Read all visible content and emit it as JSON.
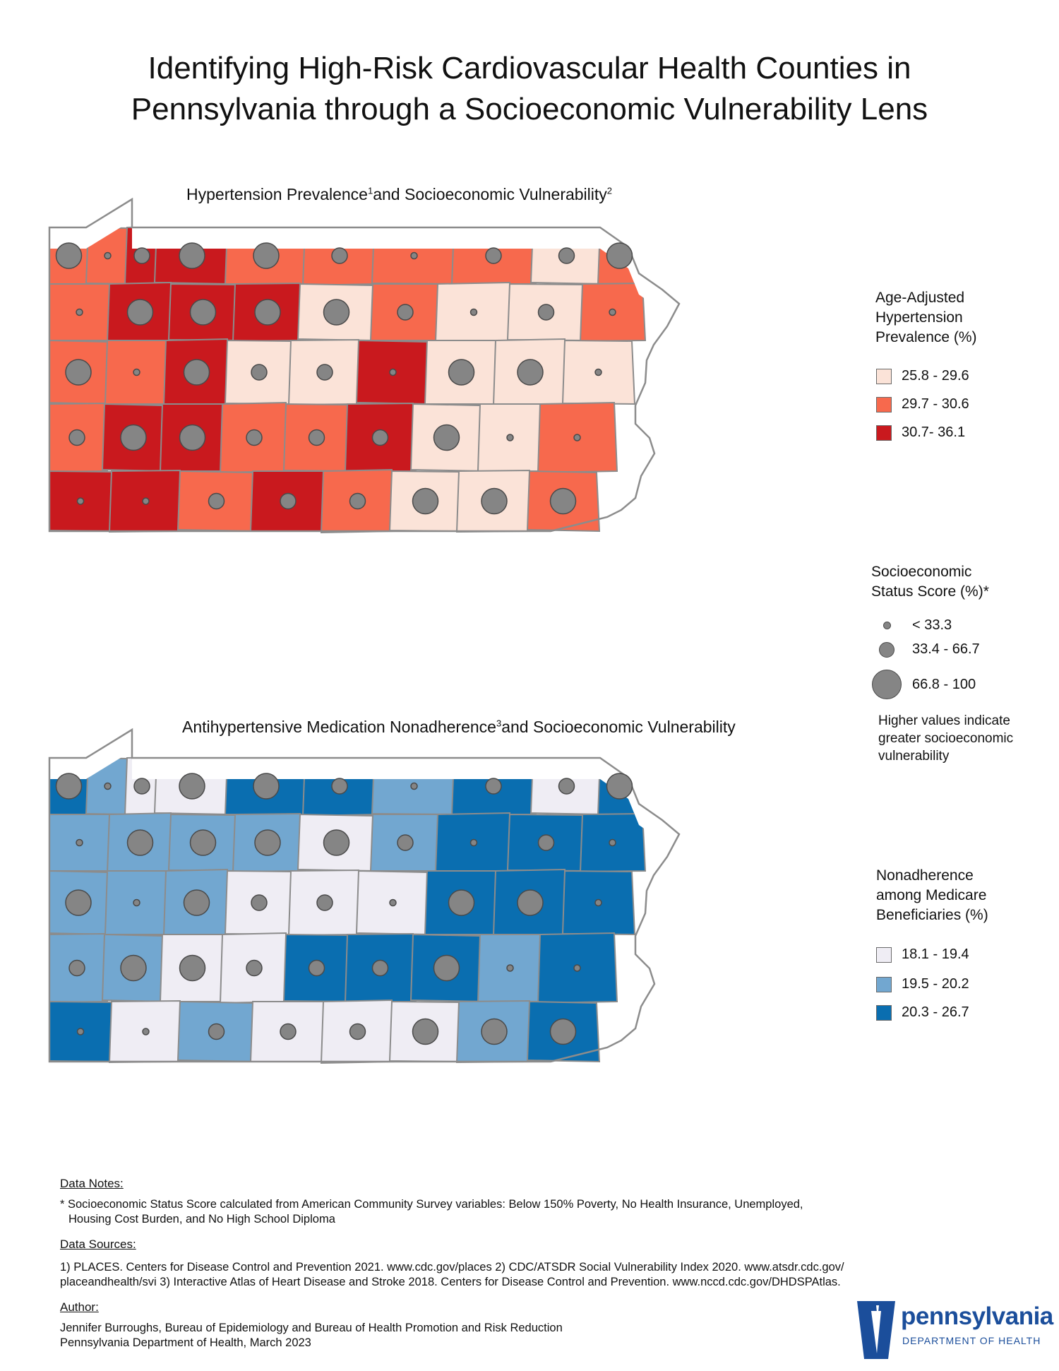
{
  "title_line1": "Identifying High-Risk Cardiovascular Health Counties in",
  "title_line2": "Pennsylvania through a Socioeconomic Vulnerability Lens",
  "map1": {
    "title": "Hypertension Prevalence",
    "sup1": "1",
    "title_mid": "and Socioeconomic Vulnerability",
    "sup2": "2",
    "colors": [
      "#fbe3d8",
      "#f7694d",
      "#c9191e"
    ]
  },
  "map2": {
    "title": "Antihypertensive Medication Nonadherence",
    "sup1": "3",
    "title_mid": "and Socioeconomic Vulnerability",
    "colors": [
      "#efedf4",
      "#72a7d0",
      "#0a6eb0"
    ]
  },
  "legend_hypertension": {
    "heading": [
      "Age-Adjusted",
      "Hypertension",
      "Prevalence (%)"
    ],
    "items": [
      "25.8 - 29.6",
      "29.7 - 30.6",
      "30.7- 36.1"
    ]
  },
  "legend_ses": {
    "heading": [
      "Socioeconomic",
      "Status Score (%)*"
    ],
    "items": [
      "< 33.3",
      "33.4 - 66.7",
      "66.8 - 100"
    ],
    "note": [
      "Higher values indicate",
      "greater socioeconomic",
      "vulnerability"
    ]
  },
  "legend_nonadherence": {
    "heading": [
      "Nonadherence",
      "among Medicare",
      "Beneficiaries (%)"
    ],
    "items": [
      "18.1 - 19.4",
      "19.5 - 20.2",
      "20.3 - 26.7"
    ]
  },
  "notes": {
    "data_notes_label": "Data Notes:",
    "data_notes_line1": "* Socioeconomic Status Score calculated from American Community Survey variables: Below 150% Poverty, No Health Insurance, Unemployed,",
    "data_notes_line2": "Housing Cost Burden, and No High School Diploma",
    "sources_label": "Data Sources:",
    "sources_line1": "1) PLACES. Centers for Disease Control and Prevention 2021. www.cdc.gov/places 2) CDC/ATSDR Social Vulnerability Index 2020. www.atsdr.cdc.gov/",
    "sources_line2": "placeandhealth/svi 3) Interactive Atlas of Heart Disease and Stroke 2018. Centers for Disease Control and Prevention. www.nccd.cdc.gov/DHDSPAtlas.",
    "author_label": "Author:",
    "author_line1": "Jennifer Burroughs, Bureau of Epidemiology and Bureau of Health Promotion and Risk Reduction",
    "author_line2": "Pennsylvania Department of Health, March 2023"
  },
  "logo": {
    "word": "pennsylvania",
    "sub": "DEPARTMENT OF HEALTH",
    "color": "#1b4e9b"
  },
  "counties": [
    {
      "h": 1,
      "n": 2,
      "s": 3
    },
    {
      "h": 1,
      "n": 1,
      "s": 1
    },
    {
      "h": 2,
      "n": 0,
      "s": 2
    },
    {
      "h": 2,
      "n": 0,
      "s": 3
    },
    {
      "h": 1,
      "n": 2,
      "s": 3
    },
    {
      "h": 1,
      "n": 2,
      "s": 2
    },
    {
      "h": 1,
      "n": 1,
      "s": 1
    },
    {
      "h": 1,
      "n": 2,
      "s": 2
    },
    {
      "h": 0,
      "n": 0,
      "s": 2
    },
    {
      "h": 1,
      "n": 2,
      "s": 3
    },
    {
      "h": 1,
      "n": 1,
      "s": 1
    },
    {
      "h": 2,
      "n": 1,
      "s": 3
    },
    {
      "h": 2,
      "n": 1,
      "s": 3
    },
    {
      "h": 2,
      "n": 1,
      "s": 3
    },
    {
      "h": 0,
      "n": 0,
      "s": 3
    },
    {
      "h": 1,
      "n": 1,
      "s": 2
    },
    {
      "h": 0,
      "n": 2,
      "s": 1
    },
    {
      "h": 0,
      "n": 2,
      "s": 2
    },
    {
      "h": 1,
      "n": 2,
      "s": 1
    },
    {
      "h": 1,
      "n": 1,
      "s": 3
    },
    {
      "h": 1,
      "n": 1,
      "s": 1
    },
    {
      "h": 2,
      "n": 1,
      "s": 3
    },
    {
      "h": 0,
      "n": 0,
      "s": 2
    },
    {
      "h": 0,
      "n": 0,
      "s": 2
    },
    {
      "h": 2,
      "n": 0,
      "s": 1
    },
    {
      "h": 0,
      "n": 2,
      "s": 3
    },
    {
      "h": 0,
      "n": 2,
      "s": 3
    },
    {
      "h": 0,
      "n": 2,
      "s": 1
    },
    {
      "h": 1,
      "n": 1,
      "s": 2
    },
    {
      "h": 2,
      "n": 1,
      "s": 3
    },
    {
      "h": 2,
      "n": 0,
      "s": 3
    },
    {
      "h": 1,
      "n": 0,
      "s": 2
    },
    {
      "h": 1,
      "n": 2,
      "s": 2
    },
    {
      "h": 2,
      "n": 2,
      "s": 2
    },
    {
      "h": 0,
      "n": 2,
      "s": 3
    },
    {
      "h": 0,
      "n": 1,
      "s": 1
    },
    {
      "h": 1,
      "n": 2,
      "s": 1
    },
    {
      "h": 2,
      "n": 2,
      "s": 1
    },
    {
      "h": 2,
      "n": 0,
      "s": 1
    },
    {
      "h": 1,
      "n": 1,
      "s": 2
    },
    {
      "h": 2,
      "n": 0,
      "s": 2
    },
    {
      "h": 1,
      "n": 0,
      "s": 2
    },
    {
      "h": 0,
      "n": 0,
      "s": 3
    },
    {
      "h": 0,
      "n": 1,
      "s": 3
    }
  ]
}
